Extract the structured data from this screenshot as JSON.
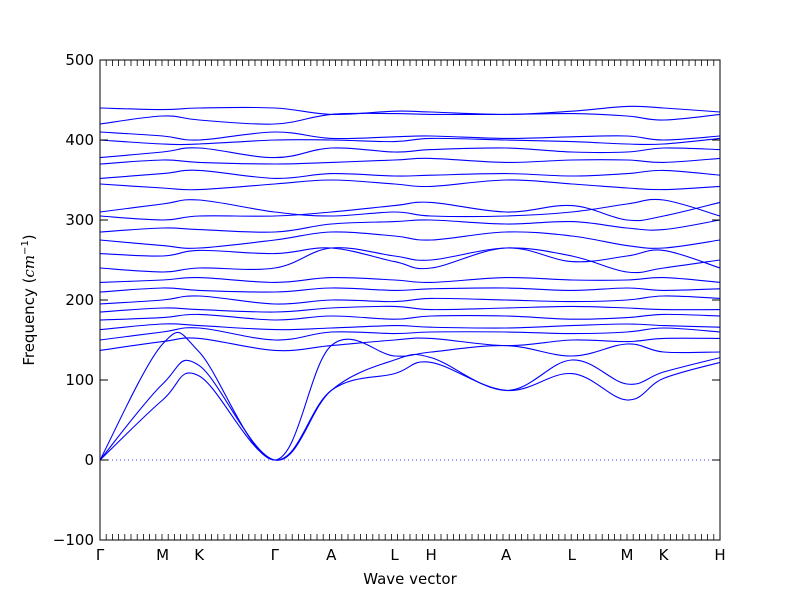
{
  "chart_data": {
    "type": "line",
    "xlabel": "Wave vector",
    "ylabel_prefix": "Frequency (",
    "ylabel_unit": "cm",
    "ylabel_exp": "−1",
    "ylabel_suffix": ")",
    "ylim": [
      -100,
      500
    ],
    "yticks": [
      -100,
      0,
      100,
      200,
      300,
      400,
      500
    ],
    "ytick_labels": [
      "−100",
      "0",
      "100",
      "200",
      "300",
      "400",
      "500"
    ],
    "line_color": "#0000ff",
    "zero_line": true,
    "path_points": [
      {
        "label": "Γ",
        "x": 0.0
      },
      {
        "label": "M",
        "x": 0.101
      },
      {
        "label": "K",
        "x": 0.16
      },
      {
        "label": "Γ",
        "x": 0.282
      },
      {
        "label": "A",
        "x": 0.373
      },
      {
        "label": "L",
        "x": 0.475
      },
      {
        "label": "H",
        "x": 0.534
      },
      {
        "label": "A",
        "x": 0.655
      },
      {
        "label": "L",
        "x": 0.761
      },
      {
        "label": "M",
        "x": 0.85
      },
      {
        "label": "K",
        "x": 0.909
      },
      {
        "label": "H",
        "x": 1.0
      }
    ],
    "series": [
      {
        "x": [
          0,
          0.101,
          0.16,
          0.282,
          0.373,
          0.475,
          0.534,
          0.655,
          0.761,
          0.85,
          0.909,
          1.0
        ],
        "y": [
          0,
          75,
          105,
          0,
          87,
          108,
          122,
          87,
          108,
          75,
          102,
          122
        ]
      },
      {
        "x": [
          0,
          0.101,
          0.16,
          0.282,
          0.373,
          0.475,
          0.534,
          0.655,
          0.761,
          0.85,
          0.909,
          1.0
        ],
        "y": [
          0,
          95,
          118,
          0,
          87,
          125,
          128,
          87,
          125,
          95,
          110,
          128
        ]
      },
      {
        "x": [
          0,
          0.101,
          0.16,
          0.282,
          0.373,
          0.475,
          0.534,
          0.655,
          0.761,
          0.85,
          0.909,
          1.0
        ],
        "y": [
          0,
          145,
          135,
          0,
          143,
          130,
          135,
          143,
          130,
          145,
          135,
          135
        ]
      },
      {
        "x": [
          0,
          0.101,
          0.16,
          0.282,
          0.373,
          0.475,
          0.534,
          0.655,
          0.761,
          0.85,
          0.909,
          1.0
        ],
        "y": [
          137,
          148,
          152,
          137,
          143,
          150,
          152,
          143,
          150,
          148,
          152,
          152
        ]
      },
      {
        "x": [
          0,
          0.101,
          0.16,
          0.282,
          0.373,
          0.475,
          0.534,
          0.655,
          0.761,
          0.85,
          0.909,
          1.0
        ],
        "y": [
          150,
          160,
          165,
          150,
          160,
          158,
          160,
          160,
          158,
          160,
          165,
          160
        ]
      },
      {
        "x": [
          0,
          0.101,
          0.16,
          0.282,
          0.373,
          0.475,
          0.534,
          0.655,
          0.761,
          0.85,
          0.909,
          1.0
        ],
        "y": [
          163,
          170,
          168,
          163,
          165,
          168,
          166,
          165,
          168,
          170,
          168,
          166
        ]
      },
      {
        "x": [
          0,
          0.101,
          0.16,
          0.282,
          0.373,
          0.475,
          0.534,
          0.655,
          0.761,
          0.85,
          0.909,
          1.0
        ],
        "y": [
          175,
          178,
          182,
          175,
          180,
          176,
          180,
          180,
          176,
          178,
          182,
          180
        ]
      },
      {
        "x": [
          0,
          0.101,
          0.16,
          0.282,
          0.373,
          0.475,
          0.534,
          0.655,
          0.761,
          0.85,
          0.909,
          1.0
        ],
        "y": [
          185,
          190,
          188,
          185,
          190,
          192,
          188,
          190,
          192,
          190,
          188,
          188
        ]
      },
      {
        "x": [
          0,
          0.101,
          0.16,
          0.282,
          0.373,
          0.475,
          0.534,
          0.655,
          0.761,
          0.85,
          0.909,
          1.0
        ],
        "y": [
          195,
          200,
          205,
          195,
          200,
          198,
          202,
          200,
          198,
          200,
          205,
          202
        ]
      },
      {
        "x": [
          0,
          0.101,
          0.16,
          0.282,
          0.373,
          0.475,
          0.534,
          0.655,
          0.761,
          0.85,
          0.909,
          1.0
        ],
        "y": [
          210,
          215,
          212,
          210,
          215,
          212,
          214,
          215,
          212,
          215,
          212,
          214
        ]
      },
      {
        "x": [
          0,
          0.101,
          0.16,
          0.282,
          0.373,
          0.475,
          0.534,
          0.655,
          0.761,
          0.85,
          0.909,
          1.0
        ],
        "y": [
          222,
          225,
          228,
          222,
          228,
          225,
          222,
          228,
          225,
          225,
          228,
          222
        ]
      },
      {
        "x": [
          0,
          0.101,
          0.16,
          0.282,
          0.373,
          0.475,
          0.534,
          0.655,
          0.761,
          0.85,
          0.909,
          1.0
        ],
        "y": [
          240,
          235,
          240,
          240,
          265,
          255,
          250,
          265,
          255,
          235,
          240,
          250
        ]
      },
      {
        "x": [
          0,
          0.101,
          0.16,
          0.282,
          0.373,
          0.475,
          0.534,
          0.655,
          0.761,
          0.85,
          0.909,
          1.0
        ],
        "y": [
          258,
          255,
          262,
          258,
          265,
          248,
          240,
          265,
          248,
          255,
          262,
          240
        ]
      },
      {
        "x": [
          0,
          0.101,
          0.16,
          0.282,
          0.373,
          0.475,
          0.534,
          0.655,
          0.761,
          0.85,
          0.909,
          1.0
        ],
        "y": [
          275,
          268,
          265,
          275,
          285,
          280,
          275,
          285,
          280,
          268,
          265,
          275
        ]
      },
      {
        "x": [
          0,
          0.101,
          0.16,
          0.282,
          0.373,
          0.475,
          0.534,
          0.655,
          0.761,
          0.85,
          0.909,
          1.0
        ],
        "y": [
          285,
          290,
          288,
          285,
          295,
          298,
          300,
          295,
          298,
          290,
          288,
          300
        ]
      },
      {
        "x": [
          0,
          0.101,
          0.16,
          0.282,
          0.373,
          0.475,
          0.534,
          0.655,
          0.761,
          0.85,
          0.909,
          1.0
        ],
        "y": [
          305,
          300,
          305,
          305,
          310,
          318,
          322,
          310,
          318,
          300,
          305,
          322
        ]
      },
      {
        "x": [
          0,
          0.101,
          0.16,
          0.282,
          0.373,
          0.475,
          0.534,
          0.655,
          0.761,
          0.85,
          0.909,
          1.0
        ],
        "y": [
          310,
          320,
          325,
          310,
          305,
          310,
          305,
          305,
          310,
          320,
          325,
          305
        ]
      },
      {
        "x": [
          0,
          0.101,
          0.16,
          0.282,
          0.373,
          0.475,
          0.534,
          0.655,
          0.761,
          0.85,
          0.909,
          1.0
        ],
        "y": [
          345,
          340,
          338,
          345,
          350,
          345,
          342,
          350,
          345,
          340,
          338,
          342
        ]
      },
      {
        "x": [
          0,
          0.101,
          0.16,
          0.282,
          0.373,
          0.475,
          0.534,
          0.655,
          0.761,
          0.85,
          0.909,
          1.0
        ],
        "y": [
          352,
          358,
          362,
          352,
          358,
          355,
          356,
          358,
          355,
          358,
          362,
          356
        ]
      },
      {
        "x": [
          0,
          0.101,
          0.16,
          0.282,
          0.373,
          0.475,
          0.534,
          0.655,
          0.761,
          0.85,
          0.909,
          1.0
        ],
        "y": [
          370,
          375,
          372,
          370,
          372,
          375,
          377,
          372,
          375,
          375,
          372,
          377
        ]
      },
      {
        "x": [
          0,
          0.101,
          0.16,
          0.282,
          0.373,
          0.475,
          0.534,
          0.655,
          0.761,
          0.85,
          0.909,
          1.0
        ],
        "y": [
          378,
          385,
          390,
          378,
          390,
          385,
          388,
          390,
          385,
          385,
          390,
          388
        ]
      },
      {
        "x": [
          0,
          0.101,
          0.16,
          0.282,
          0.373,
          0.475,
          0.534,
          0.655,
          0.761,
          0.85,
          0.909,
          1.0
        ],
        "y": [
          400,
          395,
          395,
          400,
          400,
          398,
          402,
          400,
          398,
          395,
          395,
          402
        ]
      },
      {
        "x": [
          0,
          0.101,
          0.16,
          0.282,
          0.373,
          0.475,
          0.534,
          0.655,
          0.761,
          0.85,
          0.909,
          1.0
        ],
        "y": [
          410,
          405,
          400,
          410,
          402,
          404,
          405,
          402,
          404,
          405,
          400,
          405
        ]
      },
      {
        "x": [
          0,
          0.101,
          0.16,
          0.282,
          0.373,
          0.475,
          0.534,
          0.655,
          0.761,
          0.85,
          0.909,
          1.0
        ],
        "y": [
          420,
          430,
          425,
          420,
          432,
          433,
          432,
          432,
          433,
          430,
          425,
          432
        ]
      },
      {
        "x": [
          0,
          0.101,
          0.16,
          0.282,
          0.373,
          0.475,
          0.534,
          0.655,
          0.761,
          0.85,
          0.909,
          1.0
        ],
        "y": [
          440,
          438,
          440,
          440,
          432,
          436,
          435,
          432,
          436,
          442,
          440,
          435
        ]
      }
    ]
  }
}
